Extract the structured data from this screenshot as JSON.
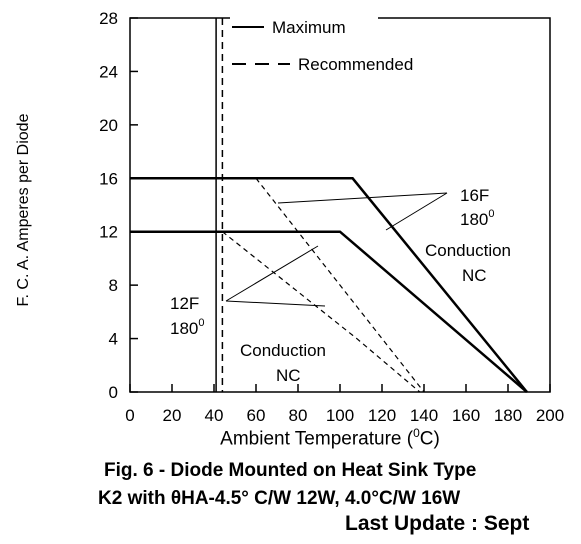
{
  "chart_data": {
    "type": "line",
    "ylabel": "F. C. A. Amperes per Diode",
    "xlabel_text": "Ambient Temperature (",
    "xlabel_sup": "0",
    "xlabel_end": "C)",
    "xlim": [
      0,
      200
    ],
    "ylim": [
      0,
      28
    ],
    "xticks": [
      0,
      20,
      40,
      60,
      80,
      100,
      120,
      140,
      160,
      180,
      200
    ],
    "yticks": [
      0,
      4,
      8,
      12,
      16,
      20,
      24,
      28
    ],
    "legend": {
      "placement": "top-center",
      "entries": [
        {
          "label": "Maximum",
          "style": "solid"
        },
        {
          "label": "Recommended",
          "style": "dashed"
        }
      ]
    },
    "vertical_reference_lines": [
      {
        "x": 41,
        "style": "solid"
      },
      {
        "x": 44,
        "style": "dashed"
      }
    ],
    "series": [
      {
        "curve": "16F max",
        "style": "solid-thick",
        "x": [
          0,
          106,
          189
        ],
        "y": [
          16,
          16,
          0
        ]
      },
      {
        "curve": "12F max",
        "style": "solid-thick",
        "x": [
          0,
          100,
          189
        ],
        "y": [
          12,
          12,
          0
        ]
      },
      {
        "curve": "16F recommended",
        "style": "dashed",
        "x": [
          60,
          140
        ],
        "y": [
          16,
          0
        ]
      },
      {
        "curve": "12F recommended",
        "style": "dashed",
        "x": [
          44,
          108,
          138
        ],
        "y": [
          12,
          4,
          0
        ]
      }
    ],
    "annotations": {
      "upper": {
        "line1": "16F",
        "line2": "180",
        "line2_sup": "0",
        "line3": "Conduction",
        "line4": "NC"
      },
      "lower": {
        "line1": "12F",
        "line2": "180",
        "line2_sup": "0",
        "line3": "Conduction",
        "line4": "NC"
      }
    },
    "grid": false
  },
  "caption": {
    "line1": "Fig. 6 - Diode Mounted on Heat Sink Type",
    "line2": "K2 with θHA-4.5° C/W 12W, 4.0°C/W 16W",
    "line3": "Last Update : Sept"
  }
}
